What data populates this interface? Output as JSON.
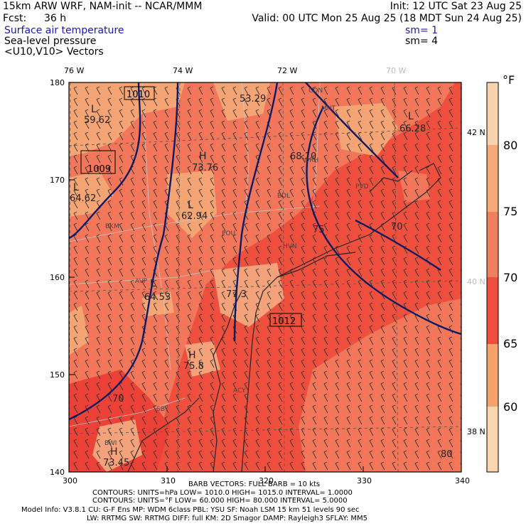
{
  "header": {
    "model_title": "15km ARW WRF, NAM-init -- NCAR/MMM",
    "init_time": "Init: 12 UTC Sat 23 Aug 25",
    "forecast_label": "Fcst:",
    "forecast_hours": "36 h",
    "valid_time": "Valid: 00 UTC Mon 25 Aug 25 (18 MDT Sun 24 Aug 25)",
    "field_1": "Surface air temperature",
    "field_2": "Sea-level pressure",
    "field_3": "<U10,V10> Vectors",
    "smoothing_1": "sm= 1",
    "smoothing_2": "sm= 4"
  },
  "map": {
    "top_lon_labels": [
      "76 W",
      "74 W",
      "72 W",
      "70 W"
    ],
    "right_lat_labels": [
      "42 N",
      "40 N",
      "38 N"
    ],
    "grid_x_ticks": [
      "300",
      "310",
      "320",
      "330",
      "340"
    ],
    "grid_y_ticks": [
      "180",
      "170",
      "160",
      "150",
      "140"
    ],
    "pressure_boxes": [
      "1010",
      "1009",
      "1012"
    ],
    "highs_lows": [
      {
        "mark": "L",
        "value": "59.62"
      },
      {
        "mark": "L",
        "value": "64.62"
      },
      {
        "mark": "L",
        "value": "62.94"
      },
      {
        "mark": "L",
        "value": "64.53"
      },
      {
        "mark": "L",
        "value": "66.28"
      },
      {
        "mark": "H",
        "value": "73.76"
      },
      {
        "mark": "H",
        "value": "75.8"
      },
      {
        "mark": "H",
        "value": "73.45"
      },
      {
        "mark": "",
        "value": "53.29"
      },
      {
        "mark": "",
        "value": "77.3"
      },
      {
        "mark": "",
        "value": "68.10"
      }
    ],
    "contour_labels": [
      "70",
      "70",
      "80",
      "75"
    ],
    "place_labels": [
      "BKM",
      "AVP",
      "POU",
      "HVN",
      "BDL",
      "ORH",
      "MHT",
      "CON",
      "ACY",
      "BWI",
      "SBY",
      "PVD"
    ]
  },
  "legend": {
    "unit": "°F",
    "ticks": [
      "80",
      "75",
      "70",
      "65",
      "60"
    ],
    "colors": [
      "#f9d3ad",
      "#f6a877",
      "#f07f5e",
      "#ee4f3c",
      "#f17459",
      "#f4a269",
      "#f9d6b0"
    ]
  },
  "footer": {
    "barb_note": "BARB VECTORS:  FULL BARB = 10 kts",
    "contours_1": "CONTOURS:  UNITS=hPa  LOW=   1010.0         HIGH=   1015.0         INTERVAL=    1.0000",
    "contours_2": "CONTOURS:  UNITS=°F  LOW=   60.000         HIGH=   80.000         INTERVAL=    5.0000",
    "model_info_1": "Model Info: V3.8.1     CU: G-F Ens  MP: WDM 6class  PBL: YSU       SF: Noah LSM    15 km    51 levels   90 sec",
    "model_info_2": "LW: RRTMG    SW: RRTMG   DIFF: full    KM: 2D Smagor DAMP: Rayleigh3   SFLAY: MM5"
  }
}
